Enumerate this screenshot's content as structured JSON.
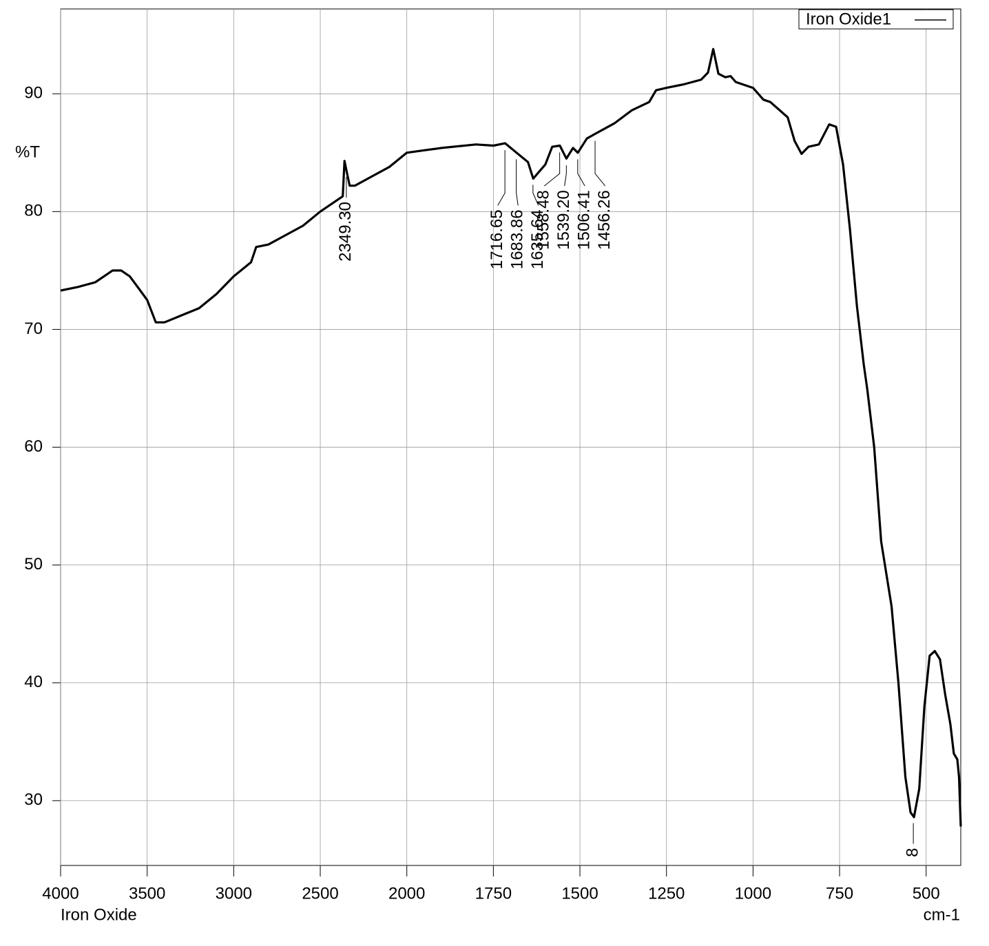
{
  "chart_data": {
    "type": "line",
    "y_label": "%T",
    "x_label": "cm-1",
    "caption": "Iron Oxide",
    "xlim": [
      4000,
      400
    ],
    "xticks": [
      4000,
      3500,
      3000,
      2500,
      2000,
      1750,
      1500,
      1250,
      1000,
      750,
      500
    ],
    "ylim": [
      24.5,
      97.2
    ],
    "yticks": [
      30,
      40,
      50,
      60,
      70,
      80,
      90
    ],
    "grid": true,
    "legend": "top-right",
    "series": [
      {
        "name": "Iron Oxide1",
        "color": "#000000",
        "x": [
          4000,
          3900,
          3800,
          3700,
          3650,
          3600,
          3550,
          3500,
          3450,
          3400,
          3300,
          3200,
          3100,
          3000,
          2900,
          2870,
          2800,
          2700,
          2600,
          2500,
          2400,
          2370,
          2360,
          2349,
          2330,
          2300,
          2200,
          2100,
          2000,
          1950,
          1900,
          1800,
          1750,
          1716,
          1683,
          1650,
          1635,
          1600,
          1580,
          1558,
          1539,
          1520,
          1506,
          1480,
          1456,
          1400,
          1350,
          1300,
          1280,
          1250,
          1200,
          1150,
          1130,
          1115,
          1100,
          1080,
          1065,
          1050,
          1000,
          970,
          950,
          900,
          880,
          860,
          840,
          810,
          780,
          760,
          740,
          720,
          700,
          680,
          670,
          650,
          630,
          600,
          580,
          560,
          545,
          535,
          520,
          505,
          490,
          475,
          460,
          445,
          430,
          420,
          410,
          405,
          400
        ],
        "values": [
          73.3,
          73.6,
          74.0,
          75.0,
          75.0,
          74.5,
          73.5,
          72.5,
          70.6,
          70.6,
          71.2,
          71.8,
          73.0,
          74.5,
          75.7,
          77.0,
          77.2,
          78.0,
          78.8,
          80.0,
          81.0,
          81.3,
          84.3,
          83.5,
          82.2,
          82.2,
          83.0,
          83.8,
          85.0,
          85.2,
          85.4,
          85.7,
          85.6,
          85.8,
          85.0,
          84.2,
          82.8,
          84.0,
          85.5,
          85.6,
          84.5,
          85.4,
          85.0,
          86.2,
          86.6,
          87.5,
          88.6,
          89.3,
          90.3,
          90.5,
          90.8,
          91.2,
          91.8,
          93.8,
          91.7,
          91.4,
          91.5,
          91.0,
          90.5,
          89.5,
          89.3,
          88.0,
          86.0,
          84.9,
          85.5,
          85.7,
          87.4,
          87.2,
          84.0,
          78.5,
          72.0,
          67.0,
          64.9,
          60.0,
          52.0,
          46.5,
          40.0,
          32.0,
          29.0,
          28.6,
          31.0,
          38.0,
          42.3,
          42.7,
          42.0,
          39.0,
          36.5,
          34.0,
          33.5,
          32.0,
          27.8
        ]
      }
    ],
    "annotations": [
      {
        "value": 2349.3,
        "label": "2349.30"
      },
      {
        "value": 1716.65,
        "label": "1716.65"
      },
      {
        "value": 1683.86,
        "label": "1683.86"
      },
      {
        "value": 1635.64,
        "label": "1635.64"
      },
      {
        "value": 1558.48,
        "label": "1558.48"
      },
      {
        "value": 1539.2,
        "label": "1539.20"
      },
      {
        "value": 1506.41,
        "label": "1506.41"
      },
      {
        "value": 1456.26,
        "label": "1456.26"
      },
      {
        "value": 537,
        "label": "8"
      }
    ]
  }
}
